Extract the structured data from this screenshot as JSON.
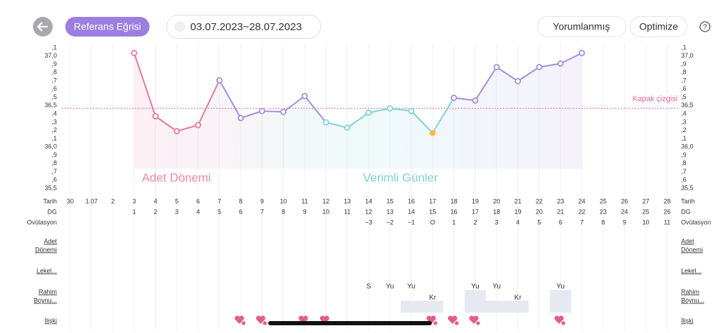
{
  "toolbar": {
    "reference_button": "Referans Eğrisi",
    "date_range": "03.07.2023~28.07.2023",
    "interpreted_button": "Yorumlanmış",
    "optimize_button": "Optimize",
    "help": "?"
  },
  "chart_data": {
    "type": "line",
    "y_labels": [
      ",1",
      "37,0",
      ",9",
      ",8",
      ",7",
      ",6",
      ",5",
      "36,5",
      ",4",
      ",3",
      ",2",
      ",1",
      "36,0",
      ",9",
      ",8",
      ",7",
      ",6",
      "35,5"
    ],
    "ylim": [
      35.5,
      37.1
    ],
    "cover_line": {
      "label": "Kapak çizgisi",
      "value": 36.41,
      "color": "#e8668f"
    },
    "annotations": [
      {
        "text": "Adet Dönemi",
        "color": "#ee86ab"
      },
      {
        "text": "Verimli Günler",
        "color": "#7fd0d2"
      }
    ],
    "row_labels": [
      "Tarih",
      "DG",
      "Ovülasyon"
    ],
    "dates": [
      "30",
      "1.07",
      "2",
      "3",
      "4",
      "5",
      "6",
      "7",
      "8",
      "9",
      "10",
      "11",
      "12",
      "13",
      "14",
      "15",
      "16",
      "17",
      "18",
      "19",
      "20",
      "21",
      "22",
      "23",
      "24",
      "25",
      "26",
      "27",
      "28"
    ],
    "cycle_days": [
      null,
      null,
      null,
      "1",
      "2",
      "3",
      "4",
      "5",
      "6",
      "7",
      "8",
      "9",
      "10",
      "11",
      "12",
      "13",
      "14",
      "15",
      "16",
      "17",
      "18",
      "19",
      "20",
      "21",
      "22",
      "23",
      "24",
      "25",
      "26"
    ],
    "ovulation_days": [
      null,
      null,
      null,
      null,
      null,
      null,
      null,
      null,
      null,
      null,
      null,
      null,
      null,
      null,
      "−3",
      "−2",
      "−1",
      "O",
      "1",
      "2",
      "3",
      "4",
      "5",
      "6",
      "7",
      "8",
      "9",
      "10",
      "11"
    ],
    "values": [
      null,
      null,
      null,
      37.04,
      36.32,
      36.15,
      36.22,
      36.73,
      36.3,
      36.38,
      36.37,
      36.55,
      36.25,
      36.19,
      36.36,
      36.41,
      36.38,
      36.13,
      36.53,
      36.5,
      36.88,
      36.72,
      36.88,
      36.92,
      37.04,
      null,
      null,
      null,
      null
    ],
    "point_colors": [
      null,
      null,
      null,
      "#e8779f",
      "#e8779f",
      "#e8779f",
      "#e8779f",
      "#a68de2",
      "#a68de2",
      "#a68de2",
      "#a68de2",
      "#a68de2",
      "#80d2d4",
      "#80d2d4",
      "#80d2d4",
      "#80d2d4",
      "#80d2d4",
      "#80d2d4",
      "#a68de2",
      "#a68de2",
      "#a68de2",
      "#a68de2",
      "#a68de2",
      "#a68de2",
      "#a68de2",
      null,
      null,
      null,
      null
    ],
    "ovulation_marker_color": "#f5bf45"
  },
  "rows": {
    "period": [
      "Adet",
      "Dönemi"
    ],
    "spotting": [
      "Lekel..."
    ],
    "cervix": [
      "Rahim",
      "Boynu..."
    ],
    "intercourse_label": [
      "İlişki"
    ],
    "cervix_top": [
      null,
      null,
      null,
      null,
      null,
      null,
      null,
      null,
      null,
      null,
      null,
      null,
      null,
      null,
      "S",
      "Yu",
      "Yu",
      null,
      null,
      "Yu",
      "Yu",
      null,
      null,
      "Yu",
      null,
      null,
      null,
      null,
      null
    ],
    "cervix_bottom": [
      null,
      null,
      null,
      null,
      null,
      null,
      null,
      null,
      null,
      null,
      null,
      null,
      null,
      null,
      null,
      null,
      null,
      "Kr",
      null,
      null,
      null,
      "Kr",
      null,
      null,
      null,
      null,
      null,
      null,
      null
    ],
    "cervix_shade": [
      null,
      null,
      null,
      null,
      null,
      null,
      null,
      null,
      null,
      null,
      null,
      null,
      null,
      null,
      null,
      null,
      "half",
      "half",
      null,
      "full",
      "half",
      "half",
      null,
      "full",
      null,
      null,
      null,
      null,
      null
    ],
    "intercourse": [
      false,
      false,
      false,
      false,
      false,
      false,
      false,
      false,
      true,
      true,
      false,
      true,
      true,
      false,
      false,
      false,
      false,
      true,
      true,
      true,
      false,
      false,
      false,
      true,
      false,
      false,
      false,
      false,
      false
    ],
    "heart_color": "#e45c8f"
  }
}
